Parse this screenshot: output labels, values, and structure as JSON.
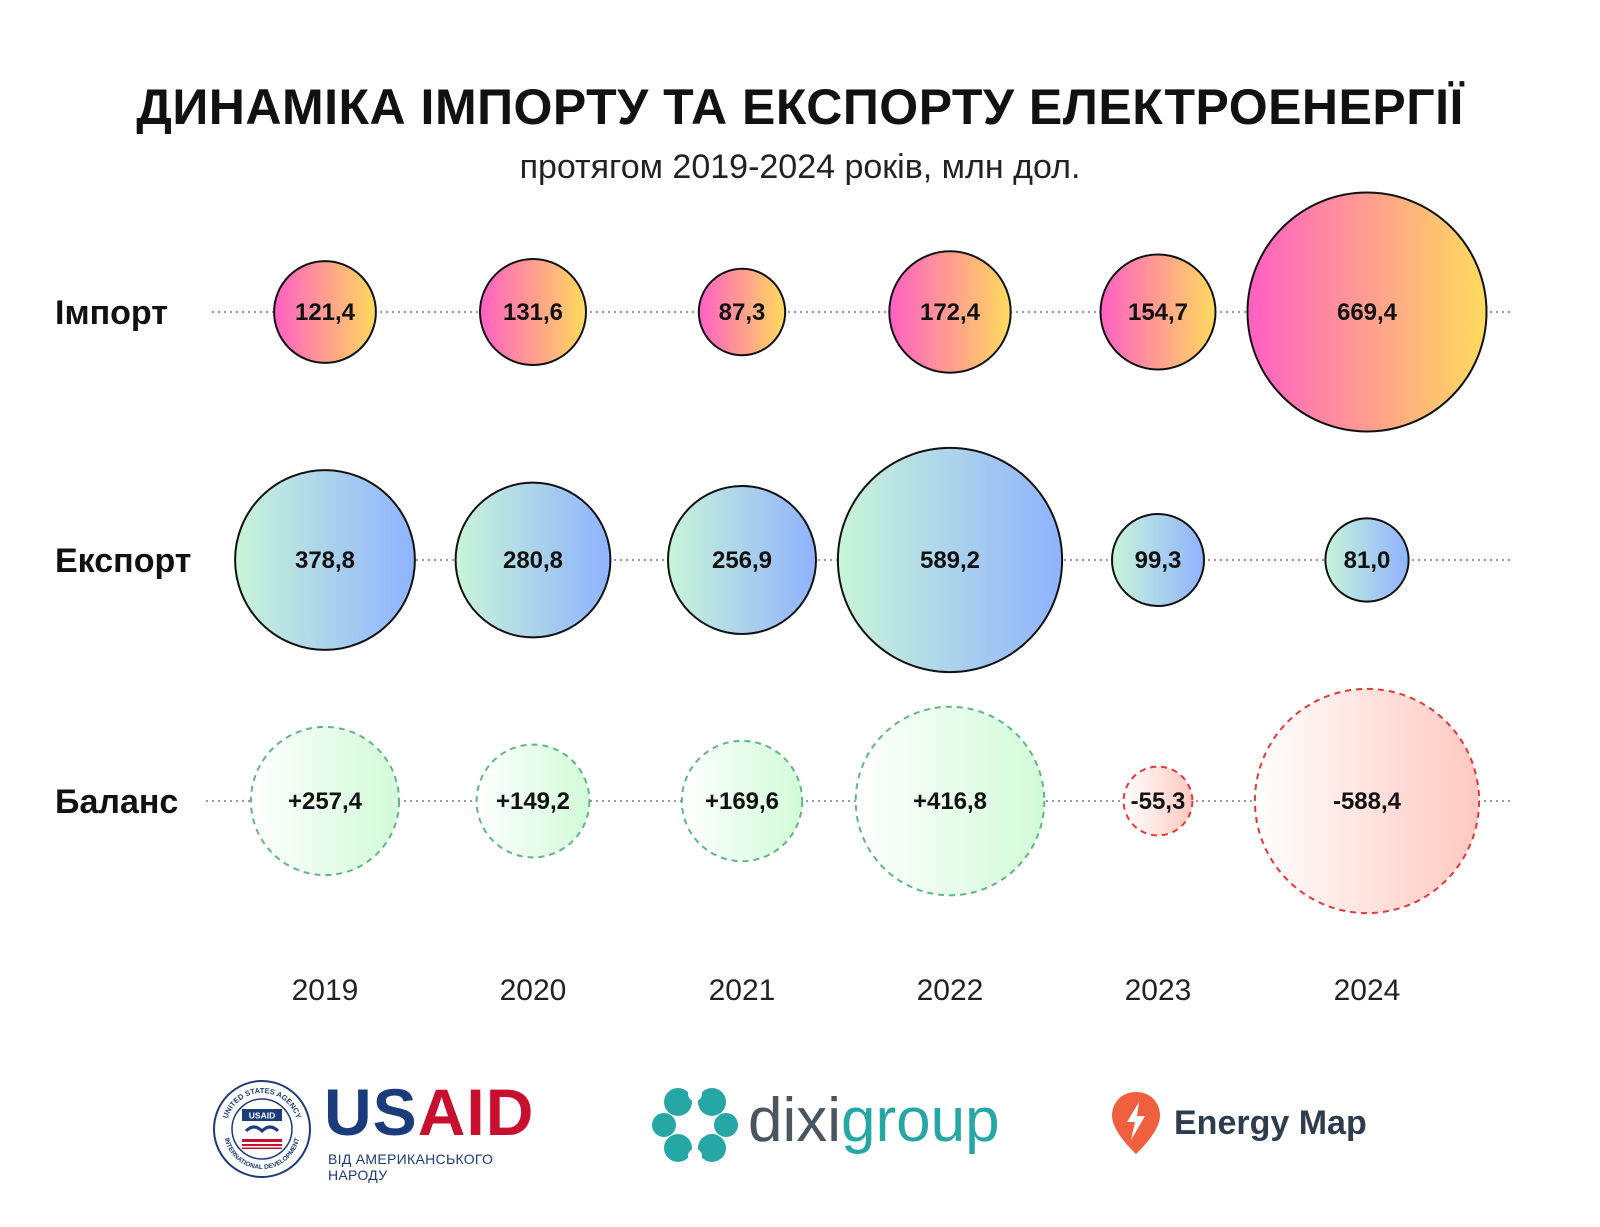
{
  "title": "ДИНАМІКА ІМПОРТУ ТА ЕКСПОРТУ ЕЛЕКТРОЕНЕРГІЇ",
  "subtitle": "протягом 2019-2024 років, млн дол.",
  "chart_data": {
    "type": "bubble",
    "categories": [
      "2019",
      "2020",
      "2021",
      "2022",
      "2023",
      "2024"
    ],
    "series": [
      {
        "name": "Імпорт",
        "values": [
          121.4,
          131.6,
          87.3,
          172.4,
          154.7,
          669.4
        ],
        "labels": [
          "121,4",
          "131,6",
          "87,3",
          "172,4",
          "154,7",
          "669,4"
        ]
      },
      {
        "name": "Експорт",
        "values": [
          378.8,
          280.8,
          256.9,
          589.2,
          99.3,
          81.0
        ],
        "labels": [
          "378,8",
          "280,8",
          "256,9",
          "589,2",
          "99,3",
          "81,0"
        ]
      },
      {
        "name": "Баланс",
        "values": [
          257.4,
          149.2,
          169.6,
          416.8,
          -55.3,
          -588.4
        ],
        "labels": [
          "+257,4",
          "+149,2",
          "+169,6",
          "+416,8",
          "-55,3",
          "-588,4"
        ]
      }
    ],
    "colors": {
      "import_start": "#ff5fc4",
      "import_end": "#ffdb5c",
      "export_start": "#c9f5d8",
      "export_end": "#8fb2ff",
      "balance_pos_start": "#ffffff",
      "balance_pos_end": "#d2fbd8",
      "balance_pos_stroke": "#5fb784",
      "balance_neg_start": "#ffffff",
      "balance_neg_end": "#ffc8c0",
      "balance_neg_stroke": "#e53935",
      "outline": "#111111",
      "guide": "#9a9a9a"
    }
  },
  "logos": {
    "usaid": {
      "word_us": "US",
      "word_aid": "AID",
      "tagline": "ВІД АМЕРИКАНСЬКОГО НАРОДУ",
      "seal_text_top": "UNITED STATES AGENCY",
      "seal_text_bottom": "INTERNATIONAL DEVELOPMENT",
      "seal_center": "USAID"
    },
    "dixigroup": {
      "word_dixi": "dixi",
      "word_group": "group"
    },
    "energy_map": {
      "word": "Energy Map"
    }
  }
}
